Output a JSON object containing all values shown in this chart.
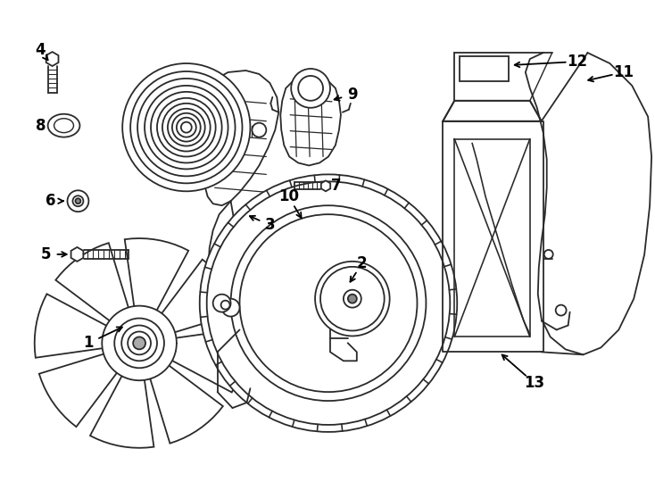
{
  "bg_color": "#ffffff",
  "line_color": "#2a2a2a",
  "line_width": 1.3,
  "fig_width": 7.34,
  "fig_height": 5.4
}
